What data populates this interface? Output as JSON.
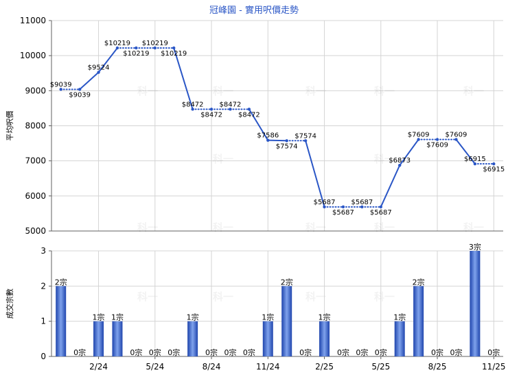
{
  "title": "冠峰園 - 實用呎價走勢",
  "watermark": "科一",
  "colors": {
    "line": "#2a56c6",
    "grid": "#d4d4d4",
    "axis": "#606060",
    "text": "#000000",
    "bar_dark": "#1f45ad",
    "bar_light": "#7fa2ec"
  },
  "chart_data": [
    {
      "type": "line",
      "name": "price",
      "ylabel": "平均呎價",
      "ylim": [
        5000,
        11000
      ],
      "yticks": [
        "5000",
        "6000",
        "7000",
        "8000",
        "9000",
        "10000",
        "11000"
      ],
      "line_style": "solid between changes, dotted where value is unchanged",
      "values": [
        9039,
        9039,
        9524,
        10219,
        10219,
        10219,
        10219,
        8472,
        8472,
        8472,
        8472,
        7586,
        7574,
        7574,
        5687,
        5687,
        5687,
        5687,
        6873,
        7609,
        7609,
        7609,
        6915,
        6915
      ],
      "labels": [
        "$9039",
        "$9039",
        "$9524",
        "$10219",
        "$10219",
        "$10219",
        "$10219",
        "$8472",
        "$8472",
        "$8472",
        "$8472",
        "$7586",
        "$7574",
        "$7574",
        "$5687",
        "$5687",
        "$5687",
        "$5687",
        "$6873",
        "$7609",
        "$7609",
        "$7609",
        "$6915",
        "$6915"
      ],
      "label_position": [
        "above",
        "below",
        "above",
        "above",
        "below",
        "above",
        "below",
        "above",
        "below",
        "above",
        "below",
        "above",
        "below",
        "above",
        "above",
        "below",
        "above",
        "below",
        "above",
        "above",
        "below",
        "above",
        "above",
        "below"
      ]
    },
    {
      "type": "bar",
      "name": "transactions",
      "ylabel": "成交宗數",
      "ylim": [
        0,
        3
      ],
      "yticks": [
        "0",
        "1",
        "2",
        "3"
      ],
      "values": [
        2,
        0,
        1,
        1,
        0,
        0,
        0,
        1,
        0,
        0,
        0,
        1,
        2,
        0,
        1,
        0,
        0,
        0,
        1,
        2,
        0,
        0,
        3,
        0
      ],
      "labels": [
        "2宗",
        "0宗",
        "1宗",
        "1宗",
        "0宗",
        "0宗",
        "0宗",
        "1宗",
        "0宗",
        "0宗",
        "0宗",
        "1宗",
        "2宗",
        "0宗",
        "1宗",
        "0宗",
        "0宗",
        "0宗",
        "1宗",
        "2宗",
        "0宗",
        "0宗",
        "3宗",
        "0宗"
      ],
      "xticks": [
        "2/24",
        "5/24",
        "8/24",
        "11/24",
        "2/25",
        "5/25",
        "8/25",
        "11/25"
      ]
    }
  ]
}
